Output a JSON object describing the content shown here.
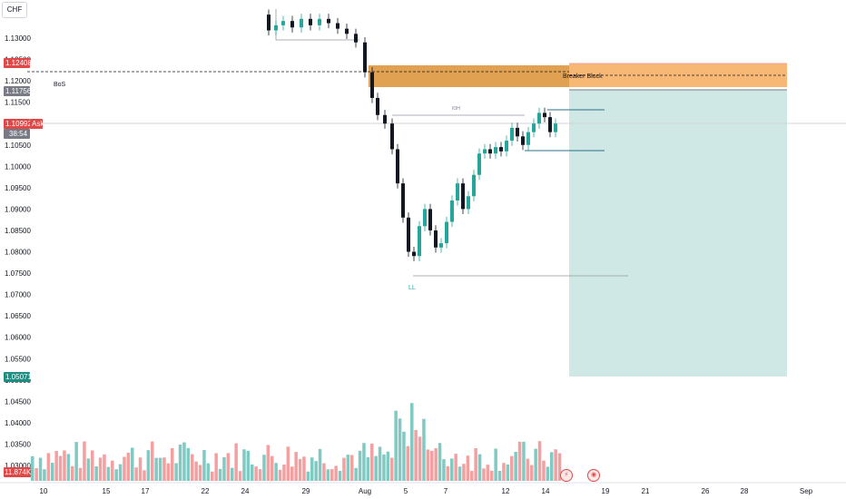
{
  "symbol": "CHF",
  "colors": {
    "up": "#26a69a",
    "down": "#131722",
    "vol_up": "#7fcbc4",
    "vol_down": "#f4a0a0",
    "zone_fill": "#e0a252",
    "zone_right": "#f7b876",
    "target_box": "#cfe8e5",
    "price_red": "#e04848",
    "price_green": "#1f8f83",
    "price_gray": "#787b86"
  },
  "price_tags": {
    "upper": "1.12408",
    "mid": "1.11756",
    "ask_price": "1.10992",
    "ask_label": "Ask",
    "countdown": "38:54",
    "lower": "1.05071",
    "volume": "11.874K"
  },
  "annotations": {
    "bos": "BoS",
    "breaker": "Breaker Block",
    "ioh": "IOH",
    "ll": "LL"
  },
  "icons": [
    "lightning-icon",
    "eye-icon"
  ],
  "chart_data": {
    "type": "candlestick",
    "y_ticks": [
      "1.13000",
      "1.12500",
      "1.12000",
      "1.11500",
      "1.11000",
      "1.10500",
      "1.10000",
      "1.09500",
      "1.09000",
      "1.08500",
      "1.08000",
      "1.07500",
      "1.07000",
      "1.06500",
      "1.06000",
      "1.05500",
      "1.05000",
      "1.04500",
      "1.04000",
      "1.03500",
      "1.03000"
    ],
    "x_ticks": [
      "10",
      "15",
      "17",
      "22",
      "24",
      "29",
      "Aug",
      "5",
      "7",
      "12",
      "14",
      "19",
      "21",
      "26",
      "28",
      "Sep"
    ],
    "ohlc_visible_range": [
      1.074,
      1.135
    ],
    "volume_range_K": [
      0,
      30
    ]
  }
}
